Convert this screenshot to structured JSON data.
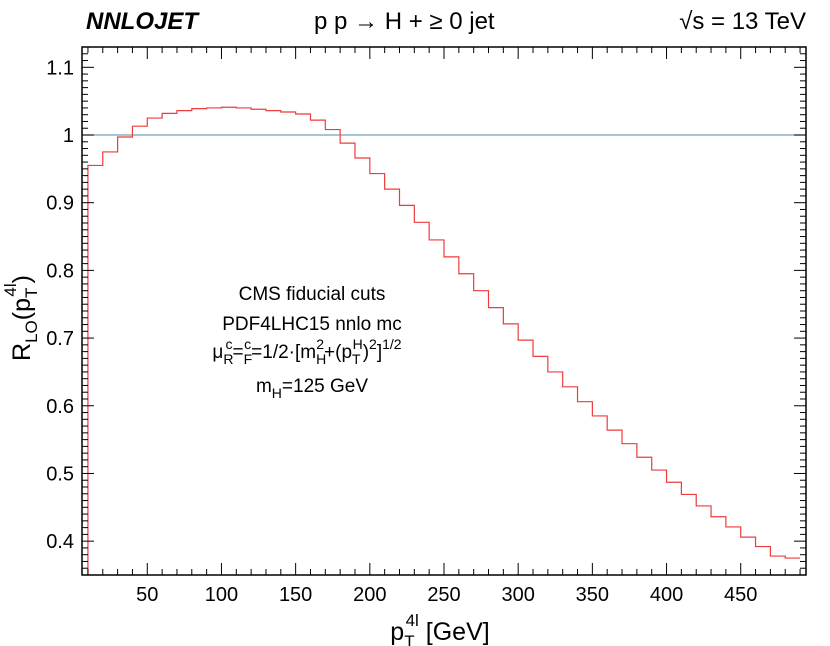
{
  "header": {
    "brand": "NNLOJET",
    "process": "p p → H + ≥ 0 jet",
    "energy": "√s  = 13 TeV"
  },
  "annotations": {
    "line1": "CMS fiducial cuts",
    "line2": "PDF4LHC15 nnlo mc",
    "scale": {
      "mu": "μ",
      "R": "R",
      "F": "F",
      "c": "c",
      "mid": "=1/2·[m",
      "H": "H",
      "two": "2",
      "plus": "+(p",
      "T": "T",
      "close": ")",
      "exp": "1/2"
    },
    "mass": {
      "m": "m",
      "H": "H",
      "rest": "=125 GeV"
    }
  },
  "colors": {
    "histogram": "#ee3b3b",
    "reference": "#6fa3b8",
    "frame": "#000000"
  },
  "chart_data": {
    "type": "line",
    "step": true,
    "xlabel": {
      "base": "p",
      "sub": "T",
      "sup": "4l",
      "unit": " [GeV]"
    },
    "ylabel": {
      "base": "R",
      "sub": "LO",
      "paren_open": "(p",
      "sub2": "T",
      "sup": "4l",
      "paren_close": ")"
    },
    "xlim": [
      6,
      494
    ],
    "ylim": [
      0.35,
      1.13
    ],
    "xticks": [
      50,
      100,
      150,
      200,
      250,
      300,
      350,
      400,
      450
    ],
    "yticks": [
      0.4,
      0.5,
      0.6,
      0.7,
      0.8,
      0.9,
      1,
      1.1
    ],
    "ytick_labels": [
      "0.4",
      "0.5",
      "0.6",
      "0.7",
      "0.8",
      "0.9",
      "1",
      "1.1"
    ],
    "reference_line": 1.0,
    "bin_edges": [
      10,
      20,
      30,
      40,
      50,
      60,
      70,
      80,
      90,
      100,
      110,
      120,
      130,
      140,
      150,
      160,
      170,
      180,
      190,
      200,
      210,
      220,
      230,
      240,
      250,
      260,
      270,
      280,
      290,
      300,
      310,
      320,
      330,
      340,
      350,
      360,
      370,
      380,
      390,
      400,
      410,
      420,
      430,
      440,
      450,
      460,
      470,
      480,
      490
    ],
    "series": [
      {
        "values": [
          0.955,
          0.975,
          0.997,
          1.013,
          1.025,
          1.032,
          1.036,
          1.039,
          1.04,
          1.041,
          1.04,
          1.038,
          1.036,
          1.034,
          1.031,
          1.022,
          1.008,
          0.988,
          0.966,
          0.943,
          0.92,
          0.896,
          0.871,
          0.845,
          0.82,
          0.795,
          0.77,
          0.745,
          0.721,
          0.697,
          0.673,
          0.65,
          0.628,
          0.606,
          0.585,
          0.564,
          0.544,
          0.524,
          0.505,
          0.487,
          0.469,
          0.452,
          0.436,
          0.421,
          0.406,
          0.392,
          0.378,
          0.375
        ]
      }
    ]
  }
}
